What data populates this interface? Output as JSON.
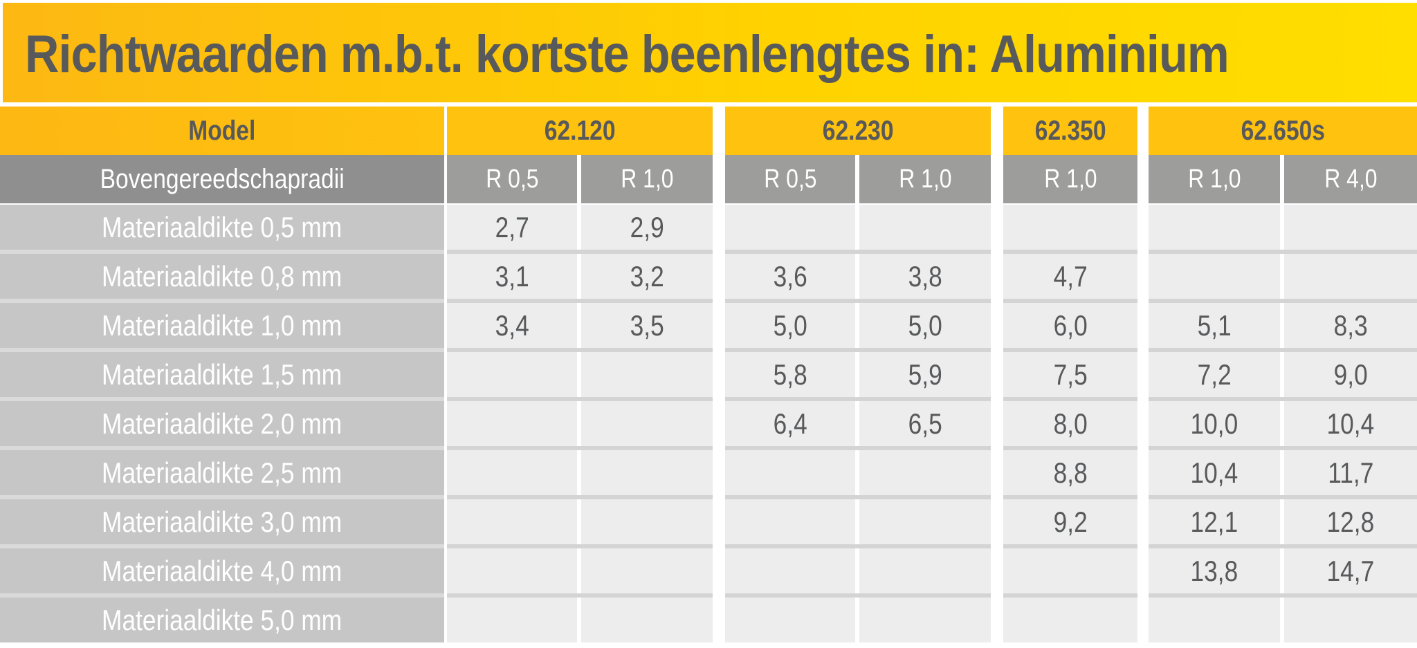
{
  "title": "Richtwaarden m.b.t. kortste beenlengtes in: Aluminium",
  "model_label": "Model",
  "radii_label": "Bovengereedschapradii",
  "models": [
    {
      "name": "62.120",
      "radii": [
        "R 0,5",
        "R 1,0"
      ]
    },
    {
      "name": "62.230",
      "radii": [
        "R 0,5",
        "R 1,0"
      ]
    },
    {
      "name": "62.350",
      "radii": [
        "R 1,0"
      ]
    },
    {
      "name": "62.650s",
      "radii": [
        "R 1,0",
        "R 4,0"
      ]
    }
  ],
  "rows": [
    {
      "label": "Materiaaldikte 0,5 mm",
      "values": [
        "2,7",
        "2,9",
        "",
        "",
        "",
        "",
        ""
      ]
    },
    {
      "label": "Materiaaldikte 0,8 mm",
      "values": [
        "3,1",
        "3,2",
        "3,6",
        "3,8",
        "4,7",
        "",
        ""
      ]
    },
    {
      "label": "Materiaaldikte 1,0 mm",
      "values": [
        "3,4",
        "3,5",
        "5,0",
        "5,0",
        "6,0",
        "5,1",
        "8,3"
      ]
    },
    {
      "label": "Materiaaldikte 1,5 mm",
      "values": [
        "",
        "",
        "5,8",
        "5,9",
        "7,5",
        "7,2",
        "9,0"
      ]
    },
    {
      "label": "Materiaaldikte 2,0 mm",
      "values": [
        "",
        "",
        "6,4",
        "6,5",
        "8,0",
        "10,0",
        "10,4"
      ]
    },
    {
      "label": "Materiaaldikte 2,5 mm",
      "values": [
        "",
        "",
        "",
        "",
        "8,8",
        "10,4",
        "11,7"
      ]
    },
    {
      "label": "Materiaaldikte 3,0 mm",
      "values": [
        "",
        "",
        "",
        "",
        "9,2",
        "12,1",
        "12,8"
      ]
    },
    {
      "label": "Materiaaldikte 4,0 mm",
      "values": [
        "",
        "",
        "",
        "",
        "",
        "13,8",
        "14,7"
      ]
    },
    {
      "label": "Materiaaldikte 5,0 mm",
      "values": [
        "",
        "",
        "",
        "",
        "",
        "",
        ""
      ]
    }
  ],
  "colors": {
    "accent_yellow": "#ffc20e",
    "header_grey": "#9d9d9c",
    "label_grey": "#c6c6c6",
    "cell_grey": "#ededed",
    "text_dark": "#58595b"
  }
}
